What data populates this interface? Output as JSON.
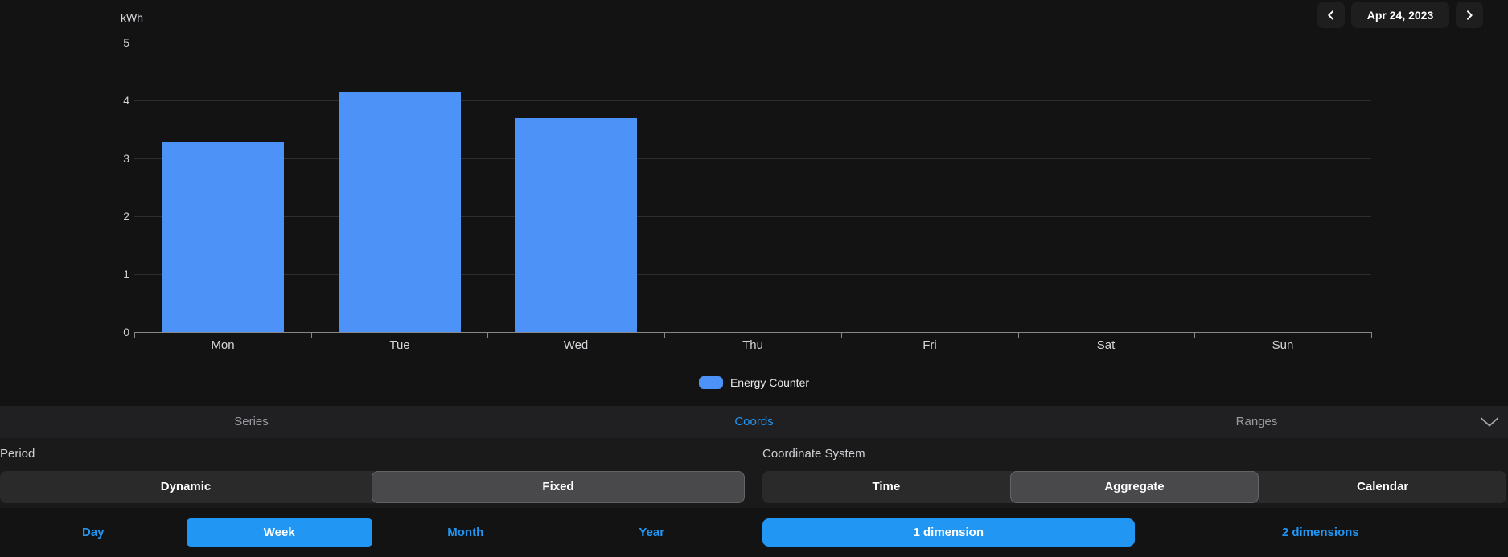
{
  "colors": {
    "accent_blue": "#2196f3",
    "bar_blue": "#4d92f7",
    "background": "#131313",
    "tabbar_background": "#202022",
    "segment_background": "#2a2a2b",
    "segment_selected": "#49494b"
  },
  "date_nav": {
    "prev_icon": "chevron-left-icon",
    "date_label": "Apr 24, 2023",
    "next_icon": "chevron-right-icon"
  },
  "chart": {
    "unit_label": "kWh",
    "legend_label": "Energy Counter"
  },
  "chart_data": {
    "type": "bar",
    "title": "",
    "xlabel": "",
    "ylabel": "kWh",
    "categories": [
      "Mon",
      "Tue",
      "Wed",
      "Thu",
      "Fri",
      "Sat",
      "Sun"
    ],
    "series": [
      {
        "name": "Energy Counter",
        "values": [
          3.28,
          4.14,
          3.7,
          null,
          null,
          null,
          null
        ]
      }
    ],
    "ylim": [
      0,
      5
    ],
    "y_ticks": [
      0,
      1,
      2,
      3,
      4,
      5
    ],
    "grid": true,
    "legend_position": "bottom",
    "bar_color": "#4d92f7"
  },
  "tabs": {
    "items": [
      {
        "label": "Series",
        "active": false
      },
      {
        "label": "Coords",
        "active": true
      },
      {
        "label": "Ranges",
        "active": false
      }
    ],
    "collapse_icon": "chevron-down-icon"
  },
  "period": {
    "label": "Period",
    "mode_options": [
      {
        "label": "Dynamic",
        "selected": false
      },
      {
        "label": "Fixed",
        "selected": true
      }
    ],
    "range_options": [
      {
        "label": "Day",
        "selected": false
      },
      {
        "label": "Week",
        "selected": true
      },
      {
        "label": "Month",
        "selected": false
      },
      {
        "label": "Year",
        "selected": false
      }
    ]
  },
  "coordinate_system": {
    "label": "Coordinate System",
    "system_options": [
      {
        "label": "Time",
        "selected": false
      },
      {
        "label": "Aggregate",
        "selected": true
      },
      {
        "label": "Calendar",
        "selected": false
      }
    ],
    "dimension_options": [
      {
        "label": "1 dimension",
        "selected": true
      },
      {
        "label": "2 dimensions",
        "selected": false
      }
    ]
  }
}
